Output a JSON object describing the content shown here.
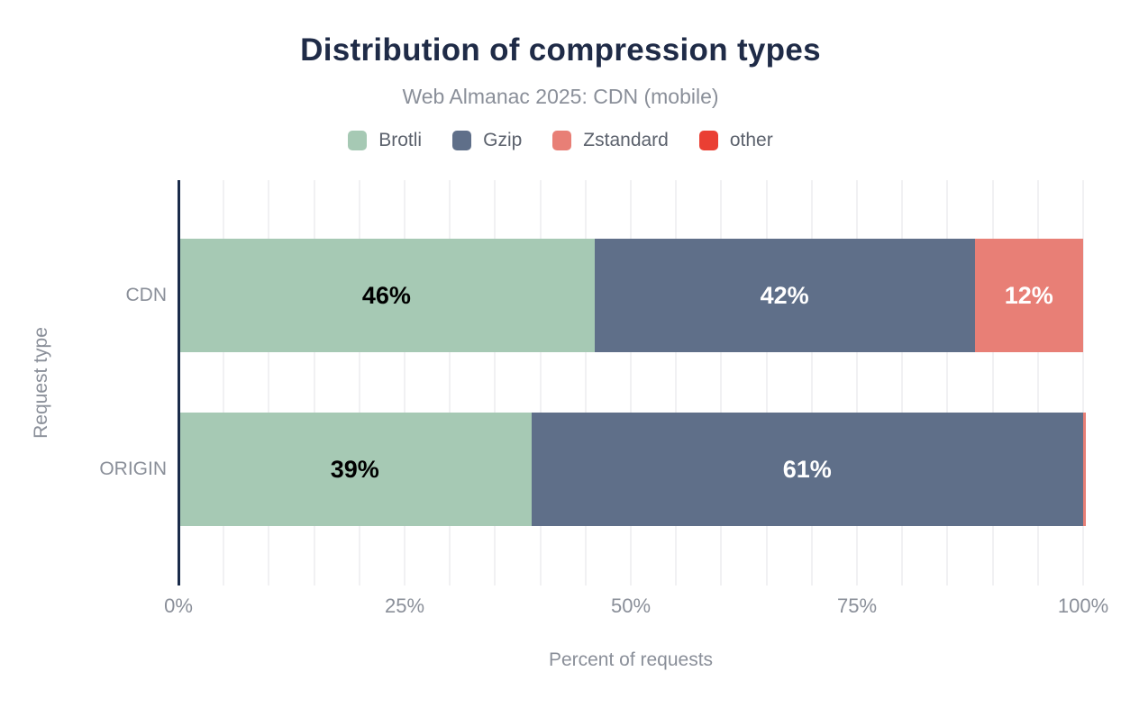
{
  "header": {
    "title": "Distribution of compression types",
    "subtitle": "Web Almanac 2025: CDN (mobile)"
  },
  "axes": {
    "x_title": "Percent of requests",
    "y_title": "Request type",
    "x_ticks": [
      "0%",
      "25%",
      "50%",
      "75%",
      "100%"
    ],
    "y_ticks": [
      "CDN",
      "ORIGIN"
    ]
  },
  "legend": {
    "entries": [
      "Brotli",
      "Gzip",
      "Zstandard",
      "other"
    ]
  },
  "chart_data": {
    "type": "bar",
    "orientation": "horizontal",
    "stacked": true,
    "title": "Distribution of compression types",
    "subtitle": "Web Almanac 2025: CDN (mobile)",
    "xlabel": "Percent of requests",
    "ylabel": "Request type",
    "xlim": [
      0,
      100
    ],
    "x_tick_labels": [
      "0%",
      "25%",
      "50%",
      "75%",
      "100%"
    ],
    "grid": "vertical minor gridlines every 5%",
    "legend_position": "top",
    "categories": [
      "CDN",
      "ORIGIN"
    ],
    "series": [
      {
        "name": "Brotli",
        "color": "#a6c9b4",
        "label_color": "#000000",
        "values": [
          46,
          39
        ],
        "labels": [
          "46%",
          "39%"
        ]
      },
      {
        "name": "Gzip",
        "color": "#5f6f89",
        "label_color": "#ffffff",
        "values": [
          42,
          61
        ],
        "labels": [
          "42%",
          "61%"
        ]
      },
      {
        "name": "Zstandard",
        "color": "#e87f76",
        "label_color": "#ffffff",
        "values": [
          12,
          0.3
        ],
        "labels": [
          "12%",
          ""
        ]
      },
      {
        "name": "other",
        "color": "#ea3f33",
        "label_color": "#ffffff",
        "values": [
          0,
          0
        ],
        "labels": [
          "",
          ""
        ]
      }
    ]
  },
  "colors": {
    "title_text": "#1f2b47",
    "muted_text": "#8a8f99",
    "legend_text": "#5c626d",
    "axis_line": "#1a2b4a",
    "gridline": "#f1f1f3",
    "background": "#ffffff"
  }
}
